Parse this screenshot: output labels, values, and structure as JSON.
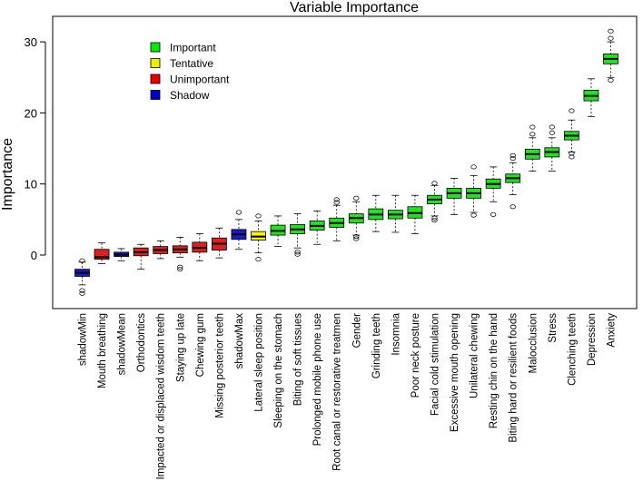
{
  "chart_data": {
    "type": "boxplot",
    "title": "Variable Importance",
    "xlabel": "",
    "ylabel": "Importance",
    "ylim": [
      -6,
      33
    ],
    "yticks": [
      0,
      10,
      20,
      30
    ],
    "grid": false,
    "legend": {
      "position": "top-left",
      "entries": [
        {
          "label": "Important",
          "color": "#00ee00"
        },
        {
          "label": "Tentative",
          "color": "#eeee00"
        },
        {
          "label": "Unimportant",
          "color": "#ee0000"
        },
        {
          "label": "Shadow",
          "color": "#0000cc"
        }
      ]
    },
    "status_colors": {
      "Important": "#22e022",
      "Tentative": "#f0f01a",
      "Unimportant": "#dd1f1f",
      "Shadow": "#1a1acc"
    },
    "series": [
      {
        "name": "shadowMin",
        "status": "Shadow",
        "min": -4.2,
        "q1": -3.0,
        "median": -2.5,
        "q3": -2.0,
        "max": -1.0,
        "outliers": [
          -0.8,
          -5.0,
          -5.4
        ]
      },
      {
        "name": "Mouth breathing",
        "status": "Unimportant",
        "min": -1.2,
        "q1": -0.6,
        "median": -0.3,
        "q3": 0.8,
        "max": 1.7,
        "outliers": []
      },
      {
        "name": "shadowMean",
        "status": "Shadow",
        "min": -0.8,
        "q1": -0.2,
        "median": 0.05,
        "q3": 0.4,
        "max": 0.9,
        "outliers": []
      },
      {
        "name": "Orthodontics",
        "status": "Unimportant",
        "min": -2.0,
        "q1": -0.1,
        "median": 0.4,
        "q3": 1.0,
        "max": 1.5,
        "outliers": []
      },
      {
        "name": "Impacted or displaced wisdom teeth",
        "status": "Unimportant",
        "min": -0.5,
        "q1": 0.2,
        "median": 0.7,
        "q3": 1.2,
        "max": 2.0,
        "outliers": []
      },
      {
        "name": "Staying up late",
        "status": "Unimportant",
        "min": -0.3,
        "q1": 0.3,
        "median": 0.8,
        "q3": 1.3,
        "max": 2.5,
        "outliers": [
          -1.7,
          -2.0
        ]
      },
      {
        "name": "Chewing gum",
        "status": "Unimportant",
        "min": -0.8,
        "q1": 0.4,
        "median": 1.0,
        "q3": 1.8,
        "max": 3.0,
        "outliers": []
      },
      {
        "name": "Missing posterior teeth",
        "status": "Unimportant",
        "min": -0.4,
        "q1": 0.7,
        "median": 1.6,
        "q3": 2.4,
        "max": 3.8,
        "outliers": []
      },
      {
        "name": "shadowMax",
        "status": "Shadow",
        "min": 0.8,
        "q1": 2.2,
        "median": 2.9,
        "q3": 3.6,
        "max": 5.0,
        "outliers": [
          6.0
        ]
      },
      {
        "name": "Lateral sleep position",
        "status": "Tentative",
        "min": 0.3,
        "q1": 2.1,
        "median": 2.6,
        "q3": 3.3,
        "max": 4.8,
        "outliers": [
          -0.6,
          5.5
        ]
      },
      {
        "name": "Sleeping on the stomach",
        "status": "Important",
        "min": 1.2,
        "q1": 2.8,
        "median": 3.4,
        "q3": 4.2,
        "max": 5.5,
        "outliers": []
      },
      {
        "name": "Biting of soft tissues",
        "status": "Important",
        "min": 1.0,
        "q1": 3.0,
        "median": 3.6,
        "q3": 4.3,
        "max": 5.8,
        "outliers": [
          0.4,
          0.1
        ]
      },
      {
        "name": "Prolonged mobile phone use",
        "status": "Important",
        "min": 1.5,
        "q1": 3.5,
        "median": 4.1,
        "q3": 4.8,
        "max": 6.2,
        "outliers": []
      },
      {
        "name": "Root canal or restorative treatmen",
        "status": "Important",
        "min": 2.0,
        "q1": 3.9,
        "median": 4.5,
        "q3": 5.2,
        "max": 7.0,
        "outliers": [
          7.4,
          7.8
        ]
      },
      {
        "name": "Gender",
        "status": "Important",
        "min": 2.8,
        "q1": 4.5,
        "median": 5.2,
        "q3": 5.8,
        "max": 7.5,
        "outliers": [
          2.3,
          2.6,
          8.0
        ]
      },
      {
        "name": "Grinding teeth",
        "status": "Important",
        "min": 3.3,
        "q1": 5.0,
        "median": 5.7,
        "q3": 6.5,
        "max": 8.4,
        "outliers": []
      },
      {
        "name": "Insomnia",
        "status": "Important",
        "min": 3.2,
        "q1": 5.1,
        "median": 5.7,
        "q3": 6.3,
        "max": 8.4,
        "outliers": []
      },
      {
        "name": "Poor neck posture",
        "status": "Important",
        "min": 3.0,
        "q1": 5.2,
        "median": 5.9,
        "q3": 6.8,
        "max": 8.4,
        "outliers": []
      },
      {
        "name": "Facial cold stimulation",
        "status": "Important",
        "min": 5.5,
        "q1": 7.2,
        "median": 7.8,
        "q3": 8.4,
        "max": 9.8,
        "outliers": [
          4.9,
          5.2,
          10.1
        ]
      },
      {
        "name": "Excessive mouth opening",
        "status": "Important",
        "min": 5.7,
        "q1": 8.0,
        "median": 8.7,
        "q3": 9.4,
        "max": 10.8,
        "outliers": []
      },
      {
        "name": "Unilateral chewing",
        "status": "Important",
        "min": 6.0,
        "q1": 8.0,
        "median": 8.7,
        "q3": 9.4,
        "max": 11.2,
        "outliers": [
          5.6,
          12.4
        ]
      },
      {
        "name": "Resting chin on the hand",
        "status": "Important",
        "min": 7.5,
        "q1": 9.4,
        "median": 10.0,
        "q3": 10.7,
        "max": 12.4,
        "outliers": [
          5.7
        ]
      },
      {
        "name": "Biting hard or resilient foods",
        "status": "Important",
        "min": 8.5,
        "q1": 10.2,
        "median": 10.8,
        "q3": 11.4,
        "max": 13.0,
        "outliers": [
          6.8,
          13.6,
          14.0
        ]
      },
      {
        "name": "Malocclusion",
        "status": "Important",
        "min": 11.8,
        "q1": 13.5,
        "median": 14.2,
        "q3": 14.9,
        "max": 16.5,
        "outliers": [
          17.0,
          18.0
        ]
      },
      {
        "name": "Stress",
        "status": "Important",
        "min": 11.8,
        "q1": 13.8,
        "median": 14.5,
        "q3": 15.1,
        "max": 16.5,
        "outliers": [
          17.2,
          18.0
        ]
      },
      {
        "name": "Clenching teeth",
        "status": "Important",
        "min": 14.5,
        "q1": 16.2,
        "median": 16.8,
        "q3": 17.4,
        "max": 19.0,
        "outliers": [
          13.8,
          14.3,
          20.3
        ]
      },
      {
        "name": "Depression",
        "status": "Important",
        "min": 19.5,
        "q1": 21.7,
        "median": 22.4,
        "q3": 23.2,
        "max": 24.8,
        "outliers": []
      },
      {
        "name": "Anxiety",
        "status": "Important",
        "min": 25.0,
        "q1": 26.9,
        "median": 27.6,
        "q3": 28.3,
        "max": 30.0,
        "outliers": [
          24.6,
          30.5,
          31.5
        ]
      }
    ]
  }
}
